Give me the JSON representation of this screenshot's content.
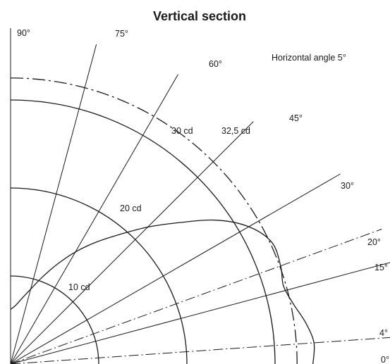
{
  "title": "Vertical section",
  "note": "Horizontal angle 5°",
  "angle_labels": [
    {
      "angle": 0,
      "label": "0°"
    },
    {
      "angle": 4,
      "label": "4°"
    },
    {
      "angle": 15,
      "label": "15°"
    },
    {
      "angle": 20,
      "label": "20°"
    },
    {
      "angle": 30,
      "label": "30°"
    },
    {
      "angle": 45,
      "label": "45°"
    },
    {
      "angle": 60,
      "label": "60°"
    },
    {
      "angle": 75,
      "label": "75°"
    },
    {
      "angle": 90,
      "label": "90°"
    }
  ],
  "rays": [
    {
      "angle": 4,
      "style": "dash-dot"
    },
    {
      "angle": 15,
      "style": "solid"
    },
    {
      "angle": 20,
      "style": "dash-dot"
    },
    {
      "angle": 30,
      "style": "solid"
    },
    {
      "angle": 45,
      "style": "solid"
    },
    {
      "angle": 60,
      "style": "solid"
    },
    {
      "angle": 75,
      "style": "solid"
    }
  ],
  "rings": [
    {
      "value": 10,
      "label": "10 cd",
      "style": "solid"
    },
    {
      "value": 20,
      "label": "20 cd",
      "style": "solid"
    },
    {
      "value": 30,
      "label": "30 cd",
      "style": "solid"
    },
    {
      "value": 32.5,
      "label": "32,5 cd",
      "style": "dash-dot"
    }
  ],
  "intensity_curve": {
    "unit": "cd",
    "points": [
      {
        "angle": 0,
        "value": 34.3
      },
      {
        "angle": 4,
        "value": 34.5
      },
      {
        "angle": 8,
        "value": 33.8
      },
      {
        "angle": 12,
        "value": 32.8
      },
      {
        "angle": 16,
        "value": 32.2
      },
      {
        "angle": 20,
        "value": 32.6
      },
      {
        "angle": 25,
        "value": 32.7
      },
      {
        "angle": 30,
        "value": 31.2
      },
      {
        "angle": 35,
        "value": 28.5
      },
      {
        "angle": 40,
        "value": 25.0
      },
      {
        "angle": 45,
        "value": 22.0
      },
      {
        "angle": 50,
        "value": 19.2
      },
      {
        "angle": 55,
        "value": 16.9
      },
      {
        "angle": 60,
        "value": 14.7
      },
      {
        "angle": 65,
        "value": 12.5
      },
      {
        "angle": 70,
        "value": 10.5
      },
      {
        "angle": 75,
        "value": 8.8
      },
      {
        "angle": 80,
        "value": 7.6
      },
      {
        "angle": 85,
        "value": 6.7
      },
      {
        "angle": 90,
        "value": 6.2
      }
    ]
  }
}
